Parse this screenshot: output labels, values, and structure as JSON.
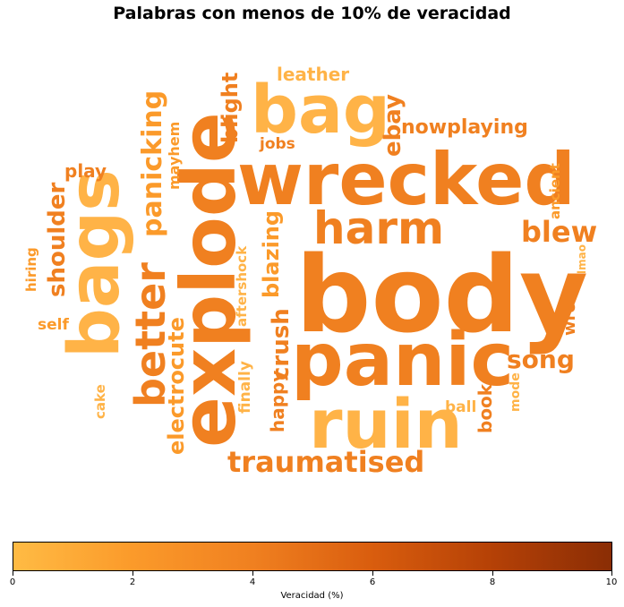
{
  "chart_data": {
    "type": "wordcloud",
    "title": "Palabras con menos de 10% de veracidad",
    "colorbar": {
      "label": "Veracidad (%)",
      "range": [
        0,
        10
      ],
      "ticks": [
        "0",
        "2",
        "4",
        "6",
        "8",
        "10"
      ],
      "colors": [
        "#ffbb44",
        "#fb9a2a",
        "#f08020",
        "#d95d0e",
        "#b54106",
        "#8a2d05"
      ]
    },
    "words": [
      {
        "text": "body"
      },
      {
        "text": "wrecked"
      },
      {
        "text": "panic"
      },
      {
        "text": "explode"
      },
      {
        "text": "bags"
      },
      {
        "text": "ruin"
      },
      {
        "text": "bag"
      },
      {
        "text": "harm"
      },
      {
        "text": "better"
      },
      {
        "text": "traumatised"
      },
      {
        "text": "panicking"
      },
      {
        "text": "blew"
      },
      {
        "text": "song"
      },
      {
        "text": "shoulder"
      },
      {
        "text": "crush"
      },
      {
        "text": "electrocute"
      },
      {
        "text": "blazing"
      },
      {
        "text": "nowplaying"
      },
      {
        "text": "blight"
      },
      {
        "text": "ebay"
      },
      {
        "text": "leather"
      },
      {
        "text": "happy"
      },
      {
        "text": "book"
      },
      {
        "text": "play"
      },
      {
        "text": "wrong"
      },
      {
        "text": "mayhem"
      },
      {
        "text": "finally"
      },
      {
        "text": "jobs"
      },
      {
        "text": "self"
      },
      {
        "text": "ball"
      },
      {
        "text": "aftershock"
      },
      {
        "text": "ancient"
      },
      {
        "text": "cake"
      },
      {
        "text": "hiring"
      },
      {
        "text": "mode"
      },
      {
        "text": "lmao"
      }
    ]
  }
}
